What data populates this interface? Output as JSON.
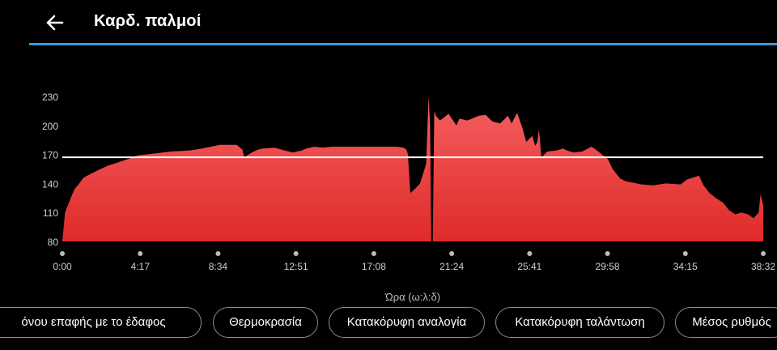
{
  "header": {
    "title": "Καρδ. παλμοί",
    "back_icon": "arrow-left-icon",
    "accent_color": "#3a9ad9"
  },
  "chart_data": {
    "type": "area",
    "ylabel_ticks": [
      "230",
      "200",
      "170",
      "140",
      "110",
      "80"
    ],
    "xtick_labels": [
      "0:00",
      "4:17",
      "8:34",
      "12:51",
      "17:08",
      "21:24",
      "25:41",
      "29:58",
      "34:15",
      "38:32"
    ],
    "xlabel": "Ώρα (ω:λ:δ)",
    "ylim": [
      80,
      230
    ],
    "xlim_seconds": [
      0,
      2312
    ],
    "reference_line": 167,
    "fill_color_top": "#f46060",
    "fill_color_bottom": "#e02a2a",
    "series": [
      {
        "x_seconds": [
          0,
          9,
          19,
          29,
          40,
          56,
          70,
          94,
          120,
          148,
          177,
          214,
          250,
          306,
          360,
          420,
          460,
          490,
          520,
          575,
          594,
          600,
          625,
          645,
          660,
          700,
          734,
          760,
          790,
          805,
          830,
          860,
          888,
          930,
          980,
          1034,
          1080,
          1105,
          1125,
          1135,
          1140,
          1144,
          1148,
          1165,
          1180,
          1200,
          1208,
          1213,
          1217,
          1222,
          1227,
          1232,
          1246,
          1274,
          1300,
          1310,
          1336,
          1374,
          1396,
          1419,
          1444,
          1470,
          1482,
          1500,
          1518,
          1530,
          1550,
          1560,
          1567,
          1572,
          1576,
          1580,
          1600,
          1630,
          1651,
          1665,
          1685,
          1715,
          1745,
          1755,
          1780,
          1800,
          1815,
          1840,
          1860,
          1880,
          1910,
          1950,
          1990,
          2040,
          2060,
          2080,
          2100,
          2115,
          2135,
          2155,
          2180,
          2200,
          2220,
          2240,
          2262,
          2280,
          2297,
          2303,
          2312
        ],
        "y": [
          80,
          110,
          118,
          126,
          134,
          140,
          146,
          150,
          154,
          158,
          161,
          165,
          169,
          171,
          173,
          174,
          176,
          178,
          180,
          180,
          175,
          167,
          172,
          175,
          176,
          177,
          174,
          172,
          174,
          176,
          178,
          177,
          178,
          178,
          178,
          178,
          178,
          178,
          177,
          175,
          170,
          150,
          130,
          135,
          140,
          160,
          230,
          200,
          80,
          80,
          215,
          210,
          205,
          212,
          200,
          207,
          205,
          210,
          211,
          204,
          202,
          210,
          202,
          213,
          197,
          183,
          189,
          179,
          183,
          196,
          183,
          167,
          173,
          174,
          176,
          174,
          172,
          173,
          178,
          176,
          170,
          165,
          155,
          145,
          142,
          141,
          139,
          138,
          140,
          139,
          144,
          146,
          148,
          138,
          130,
          125,
          120,
          112,
          108,
          110,
          108,
          104,
          110,
          129,
          117
        ]
      }
    ]
  },
  "chips": [
    "όνου επαφής με το έδαφος",
    "Θερμοκρασία",
    "Κατακόρυφη αναλογία",
    "Κατακόρυφη ταλάντωση",
    "Μέσος ρυθμός"
  ]
}
